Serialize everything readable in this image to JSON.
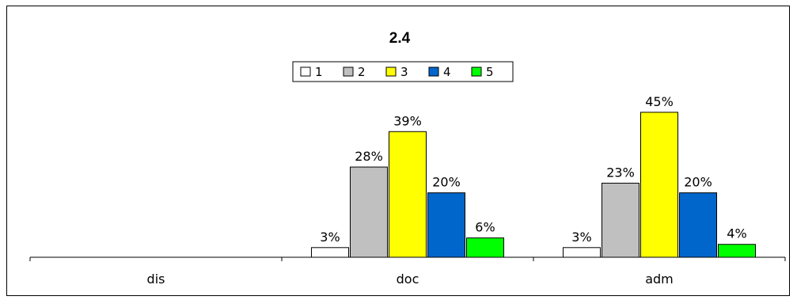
{
  "chart_data": {
    "type": "bar",
    "title": "2.4",
    "categories": [
      "dis",
      "doc",
      "adm"
    ],
    "series": [
      {
        "name": "1",
        "color": "#ffffff",
        "values": [
          null,
          3,
          3
        ]
      },
      {
        "name": "2",
        "color": "#c0c0c0",
        "values": [
          null,
          28,
          23
        ]
      },
      {
        "name": "3",
        "color": "#ffff00",
        "values": [
          null,
          39,
          45
        ]
      },
      {
        "name": "4",
        "color": "#0066cc",
        "values": [
          null,
          20,
          20
        ]
      },
      {
        "name": "5",
        "color": "#00ff00",
        "values": [
          null,
          6,
          4
        ]
      }
    ],
    "value_suffix": "%",
    "ylim": [
      0,
      50
    ],
    "legend": "top-center",
    "grid": false
  }
}
